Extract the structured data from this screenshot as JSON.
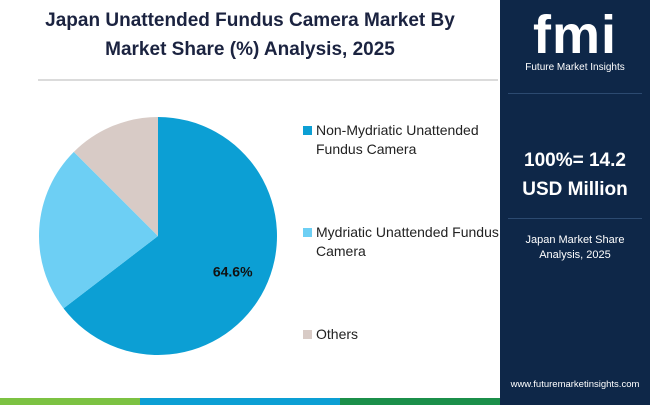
{
  "chart_data": {
    "type": "pie",
    "title": "Japan Unattended Fundus Camera Market By Market Share (%) Analysis, 2025",
    "categories": [
      "Non-Mydriatic Unattended Fundus Camera",
      "Mydriatic Unattended Fundus Camera",
      "Others"
    ],
    "values": [
      64.6,
      22.9,
      12.5
    ],
    "value_labels": [
      "64.6%",
      null,
      null
    ],
    "colors": [
      "#0c9fd4",
      "#6dcff4",
      "#d8cbc6"
    ],
    "legend": "right"
  },
  "panel": {
    "logo": "fmi",
    "logo_text": "Future Market Insights",
    "total": "100%= 14.2 USD Million",
    "subtitle": "Japan Market Share Analysis, 2025",
    "website": "www.futuremarketinsights.com"
  }
}
